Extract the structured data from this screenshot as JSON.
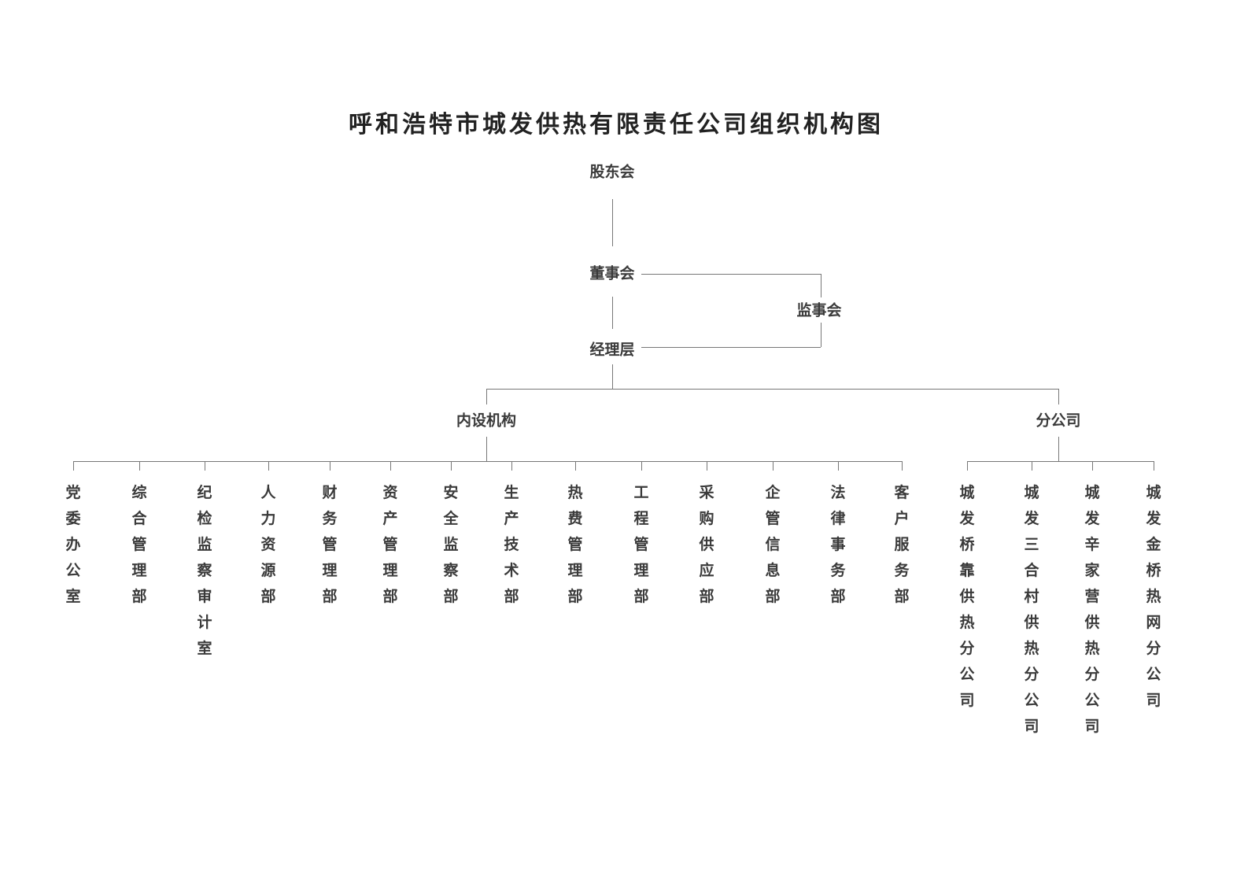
{
  "title": "呼和浩特市城发供热有限责任公司组织机构图",
  "nodes": {
    "shareholders": "股东会",
    "board": "董事会",
    "supervisors": "监事会",
    "management": "经理层",
    "internal": "内设机构",
    "branches": "分公司"
  },
  "departments": [
    "党委办公室",
    "综合管理部",
    "纪检监察审计室",
    "人力资源部",
    "财务管理部",
    "资产管理部",
    "安全监察部",
    "生产技术部",
    "热费管理部",
    "工程管理部",
    "采购供应部",
    "企管信息部",
    "法律事务部",
    "客户服务部"
  ],
  "branch_companies": [
    "城发桥靠供热分公司",
    "城发三合村供热分公司",
    "城发辛家营供热分公司",
    "城发金桥热网分公司"
  ]
}
